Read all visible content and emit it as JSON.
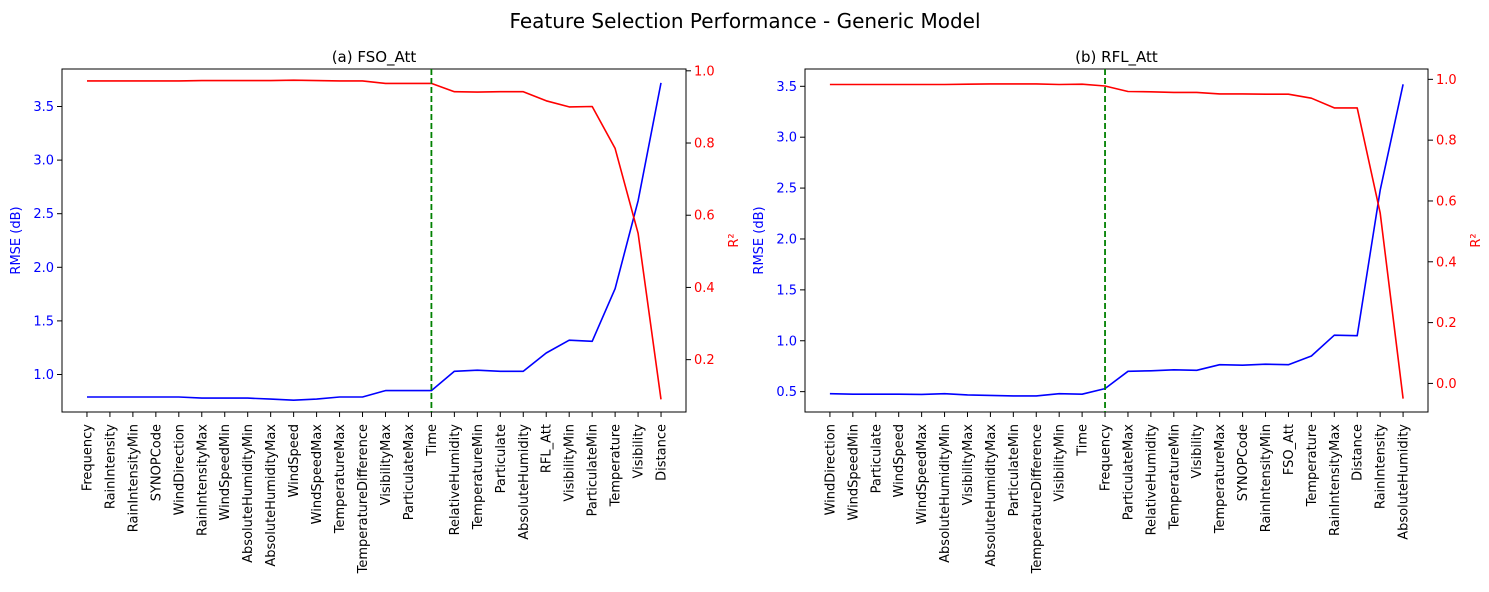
{
  "figure_title": "Feature Selection Performance - Generic Model",
  "colors": {
    "rmse": "#0000ff",
    "r2": "#ff0000",
    "cutoff": "#008000",
    "axis": "#000000"
  },
  "chart_data": [
    {
      "type": "line",
      "title": "(a) FSO_Att",
      "ylabel": "RMSE (dB)",
      "y2label": "R²",
      "ylim": [
        0.65,
        3.85
      ],
      "y2lim": [
        0.055,
        1.005
      ],
      "yticks": [
        "1.0",
        "1.5",
        "2.0",
        "2.5",
        "3.0",
        "3.5"
      ],
      "y2ticks": [
        "0.2",
        "0.4",
        "0.6",
        "0.8",
        "1.0"
      ],
      "cutoff_feature": "Time",
      "categories": [
        "Frequency",
        "RainIntensity",
        "RainIntensityMin",
        "SYNOPCode",
        "WindDirection",
        "RainIntensityMax",
        "WindSpeedMin",
        "AbsoluteHumidityMin",
        "AbsoluteHumidityMax",
        "WindSpeed",
        "WindSpeedMax",
        "TemperatureMax",
        "TemperatureDifference",
        "VisibilityMax",
        "ParticulateMax",
        "Time",
        "RelativeHumidity",
        "TemperatureMin",
        "Particulate",
        "AbsoluteHumidity",
        "RFL_Att",
        "VisibilityMin",
        "ParticulateMin",
        "Temperature",
        "Visibility",
        "Distance"
      ],
      "series": [
        {
          "name": "",
          "axis": "left",
          "values": [
            0.79,
            0.79,
            0.79,
            0.79,
            0.79,
            0.78,
            0.78,
            0.78,
            0.77,
            0.76,
            0.77,
            0.79,
            0.79,
            0.85,
            0.85,
            0.85,
            1.03,
            1.04,
            1.03,
            1.03,
            1.2,
            1.32,
            1.31,
            1.8,
            2.62,
            3.72
          ]
        },
        {
          "name": "",
          "axis": "right",
          "values": [
            0.972,
            0.972,
            0.972,
            0.972,
            0.972,
            0.973,
            0.973,
            0.973,
            0.973,
            0.974,
            0.973,
            0.972,
            0.972,
            0.965,
            0.965,
            0.965,
            0.942,
            0.941,
            0.942,
            0.942,
            0.917,
            0.9,
            0.901,
            0.785,
            0.55,
            0.09
          ]
        }
      ]
    },
    {
      "type": "line",
      "title": "(b) RFL_Att",
      "ylabel": "RMSE (dB)",
      "y2label": "R²",
      "ylim": [
        0.3,
        3.67
      ],
      "y2lim": [
        -0.094,
        1.034
      ],
      "yticks": [
        "0.5",
        "1.0",
        "1.5",
        "2.0",
        "2.5",
        "3.0",
        "3.5"
      ],
      "y2ticks": [
        "0.0",
        "0.2",
        "0.4",
        "0.6",
        "0.8",
        "1.0"
      ],
      "cutoff_feature": "Frequency",
      "categories": [
        "WindDirection",
        "WindSpeedMin",
        "Particulate",
        "WindSpeed",
        "WindSpeedMax",
        "AbsoluteHumidityMin",
        "VisibilityMax",
        "AbsoluteHumidityMax",
        "ParticulateMin",
        "TemperatureDifference",
        "VisibilityMin",
        "Time",
        "Frequency",
        "ParticulateMax",
        "RelativeHumidity",
        "TemperatureMin",
        "Visibility",
        "TemperatureMax",
        "SYNOPCode",
        "RainIntensityMin",
        "FSO_Att",
        "Temperature",
        "RainIntensityMax",
        "Distance",
        "RainIntensity",
        "AbsoluteHumidity"
      ],
      "series": [
        {
          "name": "",
          "axis": "left",
          "values": [
            0.48,
            0.475,
            0.475,
            0.475,
            0.473,
            0.48,
            0.468,
            0.463,
            0.458,
            0.458,
            0.48,
            0.475,
            0.53,
            0.7,
            0.705,
            0.715,
            0.71,
            0.765,
            0.76,
            0.77,
            0.765,
            0.85,
            1.055,
            1.05,
            2.48,
            3.52
          ]
        },
        {
          "name": "",
          "axis": "right",
          "values": [
            0.983,
            0.983,
            0.983,
            0.983,
            0.983,
            0.983,
            0.984,
            0.985,
            0.985,
            0.985,
            0.983,
            0.984,
            0.978,
            0.96,
            0.959,
            0.957,
            0.957,
            0.952,
            0.952,
            0.951,
            0.951,
            0.938,
            0.906,
            0.906,
            0.56,
            -0.05
          ]
        }
      ]
    }
  ]
}
